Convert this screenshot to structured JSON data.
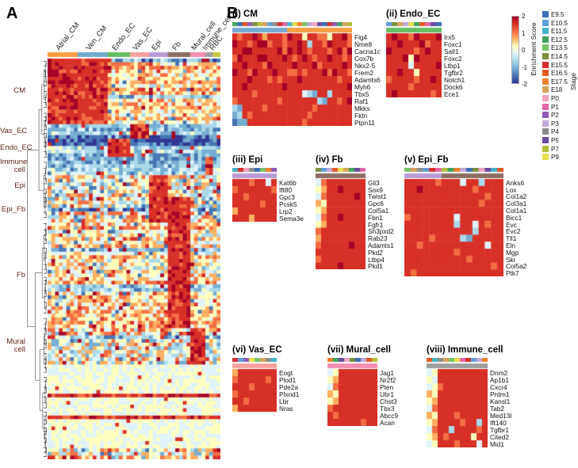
{
  "figure": {
    "panelA_label": "A",
    "panelB_label": "B"
  },
  "palette": [
    "#313695",
    "#4575b4",
    "#74add1",
    "#abd9e9",
    "#e0f3f8",
    "#ffffbf",
    "#fdae61",
    "#f46d43",
    "#d73027",
    "#a50026"
  ],
  "legend": {
    "score_title": "Enrichment Score",
    "score_ticks": [
      "2",
      "1",
      "0",
      "-1",
      "-2"
    ],
    "score_range": [
      -2,
      2
    ],
    "stage_title": "Stage",
    "stages": [
      {
        "label": "E9.5",
        "color": "#3b6fb6"
      },
      {
        "label": "E10.5",
        "color": "#5f9ed7"
      },
      {
        "label": "E11.5",
        "color": "#46b3c9"
      },
      {
        "label": "E12.5",
        "color": "#3fa45b"
      },
      {
        "label": "E13.5",
        "color": "#79c36a"
      },
      {
        "label": "E14.5",
        "color": "#7a8f3c"
      },
      {
        "label": "E15.5",
        "color": "#d32f2f"
      },
      {
        "label": "E16.5",
        "color": "#e25822"
      },
      {
        "label": "E17.5",
        "color": "#f07f2d"
      },
      {
        "label": "E18",
        "color": "#d9a15b"
      },
      {
        "label": "P0",
        "color": "#f2a3c0"
      },
      {
        "label": "P1",
        "color": "#e066a6"
      },
      {
        "label": "P2",
        "color": "#8e5bb5"
      },
      {
        "label": "P3",
        "color": "#c3a8dc"
      },
      {
        "label": "P4",
        "color": "#8c8c8c"
      },
      {
        "label": "P5",
        "color": "#6a4a9e"
      },
      {
        "label": "P7",
        "color": "#b5bd3a"
      },
      {
        "label": "P9",
        "color": "#e8e04a"
      }
    ]
  },
  "chart_data": [
    {
      "panel": "A",
      "type": "heatmap",
      "colormap": "RdYlBu",
      "value_range": [
        -2,
        2
      ],
      "col_groups": [
        {
          "name": "Atrial_CM",
          "color": "#f59e42",
          "cols": 8
        },
        {
          "name": "Ven_CM",
          "color": "#74a9cf",
          "cols": 8
        },
        {
          "name": "Endo_EC",
          "color": "#66bd63",
          "cols": 6
        },
        {
          "name": "Vas_EC",
          "color": "#f8a19f",
          "cols": 5
        },
        {
          "name": "Epi",
          "color": "#b99bd6",
          "cols": 5
        },
        {
          "name": "Fb",
          "color": "#8d6e63",
          "cols": 6
        },
        {
          "name": "Mural_cell",
          "color": "#f48fb1",
          "cols": 4
        },
        {
          "name": "Immune_cell",
          "color": "#9e9e9e",
          "cols": 2
        },
        {
          "name": "RBC",
          "color": "#c3c93e",
          "cols": 2
        }
      ],
      "row_groups": [
        {
          "name": "CM",
          "rows": 18,
          "hot": [
            "Atrial_CM",
            "Ven_CM"
          ],
          "base": "warm"
        },
        {
          "name": "Vas_EC",
          "rows": 4,
          "hot": [
            "Vas_EC"
          ],
          "base": "cool"
        },
        {
          "name": "Endo_EC",
          "rows": 5,
          "hot": [
            "Endo_EC"
          ],
          "base": "cool"
        },
        {
          "name": "Immune cell",
          "rows": 5,
          "hot": [
            "Immune_cell"
          ],
          "base": "cool"
        },
        {
          "name": "Epi",
          "rows": 6,
          "hot": [
            "Epi"
          ],
          "base": "mixed"
        },
        {
          "name": "Epi_Fb",
          "rows": 7,
          "hot": [
            "Epi",
            "Fb"
          ],
          "base": "mixed"
        },
        {
          "name": "Fb",
          "rows": 29,
          "hot": [
            "Fb"
          ],
          "base": "warm"
        },
        {
          "name": "Mural cell",
          "rows": 10,
          "hot": [
            "Mural_cell"
          ],
          "base": "mixed"
        },
        {
          "name": "",
          "rows": 8,
          "hot": [],
          "base": "pale"
        },
        {
          "name": "",
          "rows": 1,
          "hot": [],
          "base": "hot"
        },
        {
          "name": "",
          "rows": 5,
          "hot": [],
          "base": "pale"
        },
        {
          "name": "",
          "rows": 1,
          "hot": [],
          "base": "hot"
        },
        {
          "name": "",
          "rows": 8,
          "hot": [],
          "base": "pale"
        },
        {
          "name": "",
          "rows": 3,
          "hot": [
            "RBC"
          ],
          "base": "mixed"
        }
      ]
    },
    {
      "panel": "B",
      "numeral": "(i)",
      "name": "CM",
      "title": "(i) CM",
      "type": "heatmap",
      "genes": [
        "Fig4",
        "Nme8",
        "Cacna1c",
        "Cox7b",
        "Nkx2-5",
        "Frem2",
        "Adamts6",
        "Myh6",
        "Tbx5",
        "Raf1",
        "Mkks",
        "Fktn",
        "Ptpn11"
      ],
      "groups": [
        {
          "name": "Ven_CM",
          "color": "#74a9cf",
          "cols": 11
        },
        {
          "name": "Atrial_CM",
          "color": "#f59e42",
          "cols": 13
        }
      ],
      "stage_seq": [
        3,
        0,
        7,
        12,
        5,
        16,
        9,
        1,
        14,
        6,
        11,
        2,
        17,
        8,
        4,
        13,
        10,
        15,
        0,
        6,
        12,
        3,
        9,
        16
      ],
      "rows": [
        "878898688879885887758897",
        "988789978878898388798887",
        "889988888979898788878979",
        "798889988898789878898878",
        "889888798888988897888898",
        "988798889887787888979887",
        "888988878788898888888788",
        "889888888898888888888889",
        "888878888888884328838888",
        "788888888788888883288789",
        "328888788888888878888888",
        "238788888888888788888888",
        "122888888888887888888888"
      ]
    },
    {
      "panel": "B",
      "numeral": "(ii)",
      "name": "Endo_EC",
      "title": "(ii) Endo_EC",
      "type": "heatmap",
      "genes": [
        "Irx5",
        "Foxc1",
        "Sall1",
        "Foxc2",
        "Ltbp1",
        "Tgfbr2",
        "Notch1",
        "Dock6",
        "Ece1"
      ],
      "groups": [
        {
          "name": "Endo_EC",
          "color": "#66bd63",
          "cols": 10
        }
      ],
      "stage_seq": [
        1,
        5,
        9,
        13,
        17,
        3,
        7,
        11,
        15,
        0
      ],
      "rows": [
        "8988798889",
        "8898889788",
        "9888878988",
        "8889598888",
        "8888488889",
        "8898858888",
        "7888878898",
        "8888788888",
        "8988888878"
      ]
    },
    {
      "panel": "B",
      "numeral": "(iii)",
      "name": "Epi",
      "title": "(iii) Epi",
      "type": "heatmap",
      "genes": [
        "Kat6b",
        "Ift80",
        "Gpc3",
        "Pcsk5",
        "Lrp2",
        "Sema3e"
      ],
      "groups": [
        {
          "name": "Epi",
          "color": "#b99bd6",
          "cols": 8
        }
      ],
      "stage_seq": [
        2,
        6,
        10,
        14,
        0,
        4,
        8,
        12
      ],
      "rows": [
        "88878848",
        "78888887",
        "88788888",
        "88888788",
        "68888888",
        "88868888"
      ]
    },
    {
      "panel": "B",
      "numeral": "(iv)",
      "name": "Fb",
      "title": "(iv) Fb",
      "type": "heatmap",
      "genes": [
        "Gli3",
        "Sox9",
        "Twist1",
        "Gpc6",
        "Col5a1",
        "Fbn1",
        "Fgfr1",
        "Sh3pxd2",
        "Rab23",
        "Adamts1",
        "Pkd2",
        "Ltbp4",
        "Pkd1"
      ],
      "groups": [
        {
          "name": "Fb",
          "color": "#8d6e63",
          "cols": 9
        }
      ],
      "stage_seq": [
        5,
        1,
        13,
        7,
        17,
        9,
        3,
        15,
        11
      ],
      "rows": [
        "478888888",
        "568898888",
        "478888898",
        "658888888",
        "568888888",
        "478898888",
        "568888888",
        "788888888",
        "688888888",
        "788888988",
        "888888888",
        "788888888",
        "888898888"
      ]
    },
    {
      "panel": "B",
      "numeral": "(v)",
      "name": "Epi_Fb",
      "title": "(v) Epi_Fb",
      "type": "heatmap",
      "genes": [
        "Anks6",
        "Lox",
        "Col1a2",
        "Col3a1",
        "Col1a1",
        "Bicc1",
        "Evc",
        "Evc2",
        "Tll1",
        "Eln",
        "Mgp",
        "Ski",
        "Col5a2",
        "Ptk7"
      ],
      "groups": [
        {
          "name": "Epi",
          "color": "#b99bd6",
          "cols": 6
        },
        {
          "name": "Fb",
          "color": "#8d6e63",
          "cols": 10
        }
      ],
      "stage_seq": [
        4,
        9,
        14,
        1,
        6,
        11,
        16,
        3,
        8,
        13,
        0,
        5,
        10,
        15,
        2,
        7
      ],
      "rows": [
        "8888878884883888",
        "8898888888878888",
        "8888888888888788",
        "8888888888887888",
        "8888888888888888",
        "7888888848888888",
        "8888888838848788",
        "8888888888838888",
        "8888788883288888",
        "8878888888888488",
        "8888888878888888",
        "8888888888788888",
        "8888888888888878",
        "8788888888888888"
      ]
    },
    {
      "panel": "B",
      "numeral": "(vi)",
      "name": "Vas_EC",
      "title": "(vi) Vas_EC",
      "type": "heatmap",
      "genes": [
        "Eogt",
        "Plod1",
        "Pde2a",
        "Plxnd1",
        "Lbr",
        "Nras"
      ],
      "groups": [
        {
          "name": "Vas_EC",
          "color": "#f8a19f",
          "cols": 8
        }
      ],
      "stage_seq": [
        6,
        1,
        12,
        17,
        4,
        9,
        14,
        2
      ],
      "rows": [
        "68888888",
        "78888878",
        "88878888",
        "78888888",
        "88788888",
        "68888888"
      ]
    },
    {
      "panel": "B",
      "numeral": "(vii)",
      "name": "Mural_cell",
      "title": "(vii) Mural_cell",
      "type": "heatmap",
      "genes": [
        "Jag1",
        "Nr2f2",
        "Pten",
        "Ubr1",
        "Chst3",
        "Tbx3",
        "Abcc9",
        "Acan"
      ],
      "groups": [
        {
          "name": "Mural_cell",
          "color": "#f48fb1",
          "cols": 9
        }
      ],
      "stage_seq": [
        8,
        3,
        15,
        10,
        5,
        0,
        13,
        7,
        16
      ],
      "rows": [
        "458888888",
        "568888888",
        "478888888",
        "658888888",
        "568888888",
        "788888888",
        "878888888",
        "888888788"
      ]
    },
    {
      "panel": "B",
      "numeral": "(viii)",
      "name": "Immune_cell",
      "title": "(viii) Immune_cell",
      "type": "heatmap",
      "genes": [
        "Dnm2",
        "Ap1b1",
        "Cxcr4",
        "Prdm1",
        "Kansl1",
        "Tab2",
        "Med13l",
        "Ift140",
        "Tgfbr1",
        "Cited2",
        "Mid1"
      ],
      "groups": [
        {
          "name": "Immune_cell",
          "color": "#9e9e9e",
          "cols": 11
        }
      ],
      "stage_seq": [
        7,
        2,
        14,
        9,
        4,
        17,
        11,
        6,
        1,
        13,
        8
      ],
      "rows": [
        "45888888888",
        "54888888888",
        "45788888888",
        "65888888888",
        "56888888888",
        "47888888888",
        "65888788888",
        "56888878838",
        "47883888878",
        "56878888588",
        "45888788848"
      ]
    }
  ]
}
